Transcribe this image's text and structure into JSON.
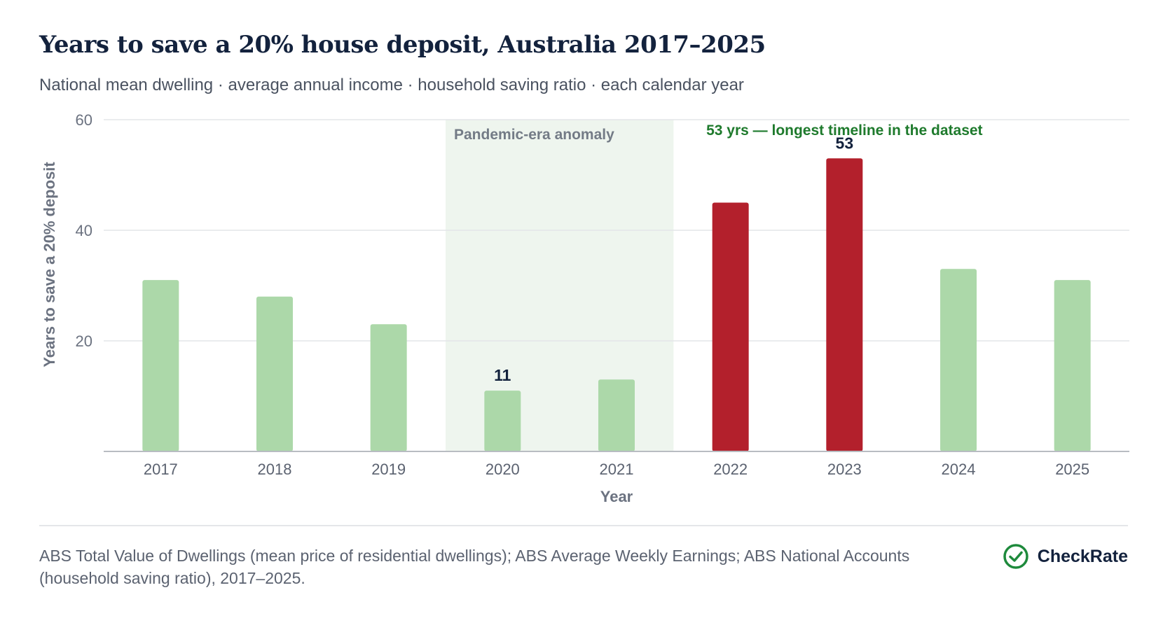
{
  "title": "Years to save a 20% house deposit, Australia 2017–2025",
  "subtitle": "National mean dwelling · average annual income · household saving ratio · each calendar year",
  "source": "ABS Total Value of Dwellings (mean price of residential dwellings); ABS Average Weekly Earnings; ABS National Accounts (household saving ratio), 2017–2025.",
  "brand": {
    "name": "CheckRate",
    "icon": "check-circle-icon"
  },
  "colors": {
    "normal": "#acd8a9",
    "highlight": "#b3202c",
    "band": "#eef5ee",
    "annotation": "#1e7a2c",
    "title": "#13223d"
  },
  "chart_data": {
    "type": "bar",
    "categories": [
      "2017",
      "2018",
      "2019",
      "2020",
      "2021",
      "2022",
      "2023",
      "2024",
      "2025"
    ],
    "values": [
      31,
      28,
      23,
      11,
      13,
      45,
      53,
      33,
      31
    ],
    "highlighted": [
      "2022",
      "2023"
    ],
    "data_labels": [
      {
        "category": "2020",
        "text": "11"
      },
      {
        "category": "2023",
        "text": "53"
      }
    ],
    "xlabel": "Year",
    "ylabel": "Years to save a 20% deposit",
    "ylim": [
      0,
      60
    ],
    "yticks": [
      20,
      40,
      60
    ],
    "grid": true,
    "shaded_region": {
      "from": "2020",
      "to": "2021",
      "label": "Pandemic-era anomaly"
    },
    "annotation": {
      "category": "2023",
      "text": "53 yrs — longest timeline in the dataset"
    }
  }
}
